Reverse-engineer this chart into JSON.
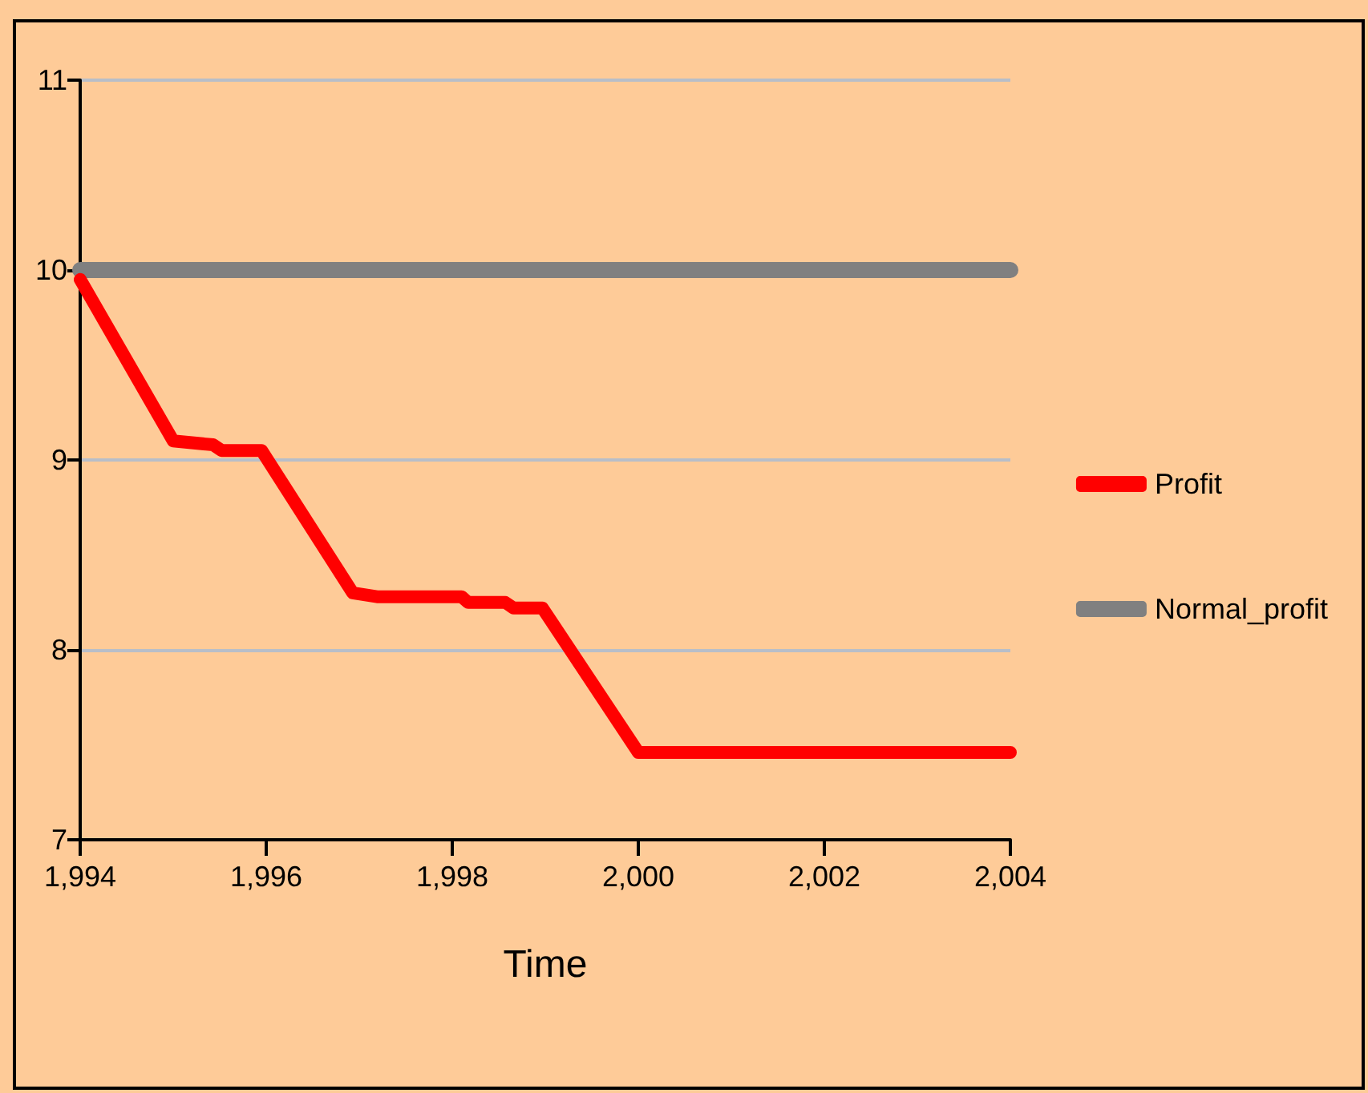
{
  "chart_data": {
    "type": "line",
    "xlabel": "Time",
    "xlim": [
      1994,
      2004
    ],
    "xticks": [
      {
        "value": 1994,
        "label": "1,994"
      },
      {
        "value": 1996,
        "label": "1,996"
      },
      {
        "value": 1998,
        "label": "1,998"
      },
      {
        "value": 2000,
        "label": "2,000"
      },
      {
        "value": 2002,
        "label": "2,002"
      },
      {
        "value": 2004,
        "label": "2,004"
      }
    ],
    "ylim": [
      7,
      11
    ],
    "yticks": [
      7,
      8,
      9,
      10,
      11
    ],
    "grid": "y",
    "legend": "right",
    "line_style": "solid",
    "series": [
      {
        "name": "Profit",
        "color": "#ff0000",
        "x": [
          1994,
          1995,
          1995.43,
          1995.52,
          1995.95,
          1996.93,
          1997.19,
          1998.1,
          1998.17,
          1998.57,
          1998.66,
          1998.97,
          2000,
          2004
        ],
        "values": [
          9.95,
          9.1,
          9.08,
          9.05,
          9.05,
          8.3,
          8.28,
          8.28,
          8.25,
          8.25,
          8.22,
          8.22,
          7.46,
          7.46
        ]
      },
      {
        "name": "Normal_profit",
        "color": "#808080",
        "x": [
          1994,
          2004
        ],
        "values": [
          10,
          10
        ]
      }
    ]
  }
}
